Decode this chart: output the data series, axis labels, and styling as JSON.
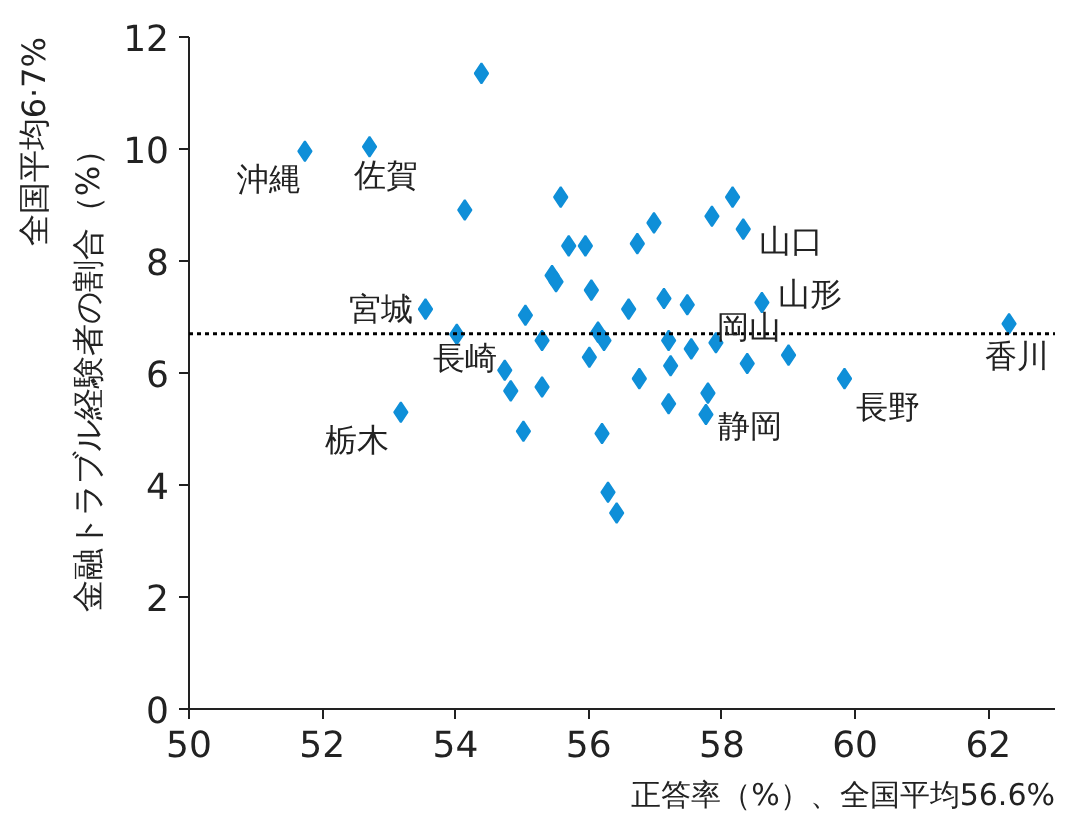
{
  "chart_data": {
    "type": "scatter",
    "xlabel": "正答率（%）、全国平均56.6%",
    "ylabel": "金融トラブル経験者の割合（%）",
    "marker": "diamond",
    "grid": false,
    "xlim": [
      50,
      63
    ],
    "xticks": [
      50,
      52,
      54,
      56,
      58,
      60,
      62
    ],
    "ylim": [
      0,
      12
    ],
    "yticks": [
      0,
      2,
      4,
      6,
      8,
      10,
      12
    ],
    "series": [
      {
        "color": "#0f8fd8",
        "x": [
          51.74,
          52.71,
          54.39,
          54.14,
          55.58,
          55.7,
          55.95,
          55.45,
          55.51,
          56.04,
          53.55,
          55.05,
          54.02,
          55.3,
          56.14,
          56.23,
          56.01,
          54.74,
          54.83,
          55.3,
          53.18,
          55.02,
          56.2,
          56.29,
          56.42,
          58.16,
          57.85,
          56.98,
          58.32,
          56.73,
          57.13,
          57.48,
          56.6,
          58.6,
          57.2,
          57.54,
          57.91,
          58.38,
          59.0,
          56.76,
          57.23,
          57.79,
          57.2,
          57.76,
          59.84,
          62.31
        ],
        "values": [
          9.96,
          10.04,
          11.35,
          8.91,
          9.14,
          8.27,
          8.27,
          7.74,
          7.63,
          7.48,
          7.14,
          7.03,
          6.69,
          6.58,
          6.73,
          6.58,
          6.28,
          6.05,
          5.68,
          5.75,
          5.3,
          4.96,
          4.92,
          3.87,
          3.5,
          9.14,
          8.8,
          8.68,
          8.57,
          8.31,
          7.33,
          7.22,
          7.14,
          7.26,
          6.58,
          6.43,
          6.54,
          6.17,
          6.32,
          5.9,
          6.13,
          5.64,
          5.45,
          5.26,
          5.9,
          6.88
        ]
      }
    ],
    "ref_lines": [
      {
        "axis": "y",
        "value": 6.7,
        "label": "全国平均6·7%",
        "color": "#000000",
        "line_style": "dotted"
      }
    ],
    "annotations": [
      {
        "text": "沖縄",
        "x": 51.74,
        "y": 9.96
      },
      {
        "text": "佐賀",
        "x": 52.71,
        "y": 10.04
      },
      {
        "text": "宮城",
        "x": 53.55,
        "y": 7.14
      },
      {
        "text": "長崎",
        "x": 54.02,
        "y": 6.69
      },
      {
        "text": "栃木",
        "x": 53.18,
        "y": 5.3
      },
      {
        "text": "山口",
        "x": 58.32,
        "y": 8.57
      },
      {
        "text": "山形",
        "x": 58.6,
        "y": 7.26
      },
      {
        "text": "岡山",
        "x": 59.0,
        "y": 6.32
      },
      {
        "text": "静岡",
        "x": 57.76,
        "y": 5.26
      },
      {
        "text": "長野",
        "x": 59.84,
        "y": 5.9
      },
      {
        "text": "香川",
        "x": 62.31,
        "y": 6.88
      }
    ]
  }
}
